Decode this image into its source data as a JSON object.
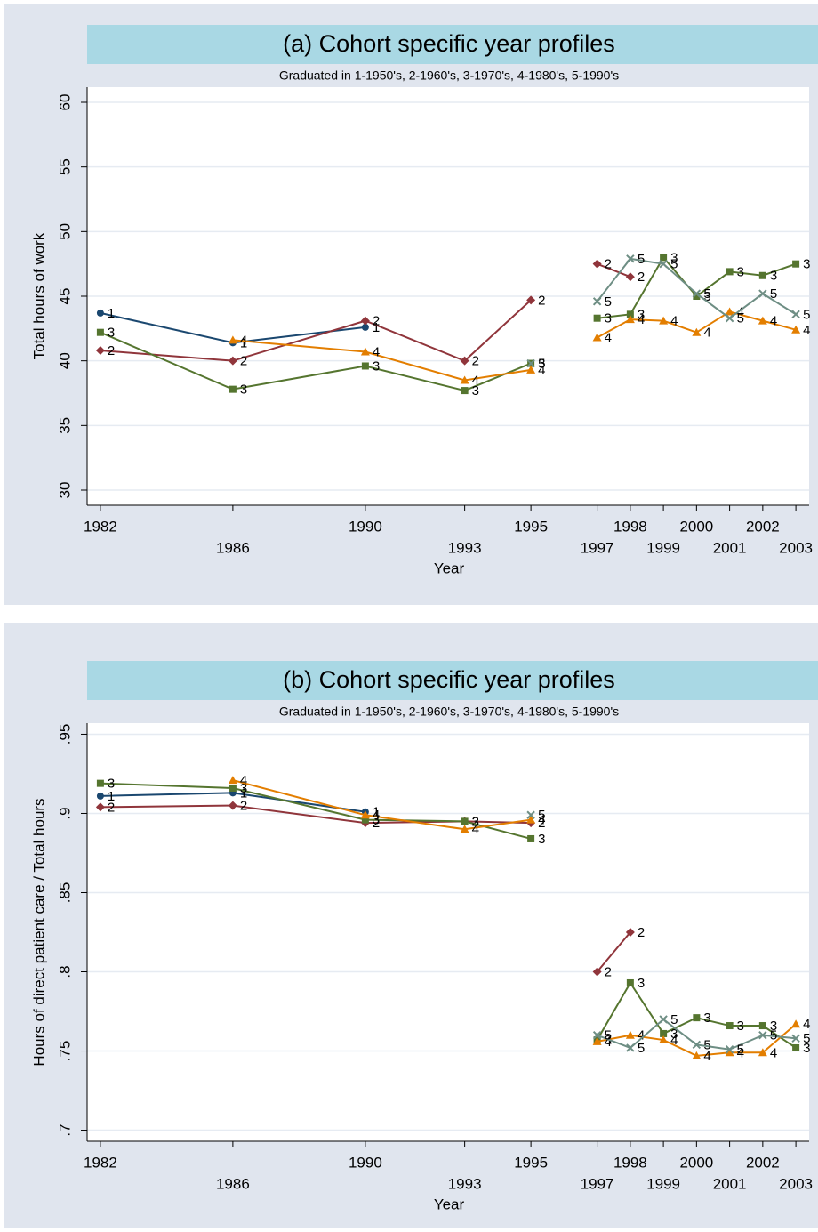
{
  "chart_data": [
    {
      "type": "line",
      "title": "(a) Cohort specific year profiles",
      "subtitle": "Graduated in 1-1950's, 2-1960's, 3-1970's, 4-1980's, 5-1990's",
      "x_label": "Year",
      "y_label": "Total hours of work",
      "xlim": [
        1981.6,
        2003.4
      ],
      "xticks": [
        1982,
        1986,
        1990,
        1993,
        1995,
        1997,
        1998,
        1999,
        2000,
        2001,
        2002,
        2003
      ],
      "ylim": [
        28.83,
        61.17
      ],
      "yticks": [
        30,
        35,
        40,
        45,
        50,
        55,
        60
      ],
      "grid": true,
      "series": [
        {
          "name": "1",
          "color": "#1a476f",
          "marker": "circle",
          "x": [
            1982,
            1986,
            1990
          ],
          "values": [
            43.7,
            41.4,
            42.6
          ]
        },
        {
          "name": "2",
          "color": "#90353b",
          "marker": "diamond",
          "x": [
            1982,
            1986,
            1990,
            1993,
            1995,
            null,
            1997,
            1998
          ],
          "values": [
            40.8,
            40.0,
            43.1,
            40.0,
            44.7,
            null,
            47.5,
            46.5
          ]
        },
        {
          "name": "3",
          "color": "#55752f",
          "marker": "square",
          "x": [
            1982,
            1986,
            1990,
            1993,
            1995,
            null,
            1997,
            1998,
            1999,
            2000,
            2001,
            2002,
            2003
          ],
          "values": [
            42.2,
            37.8,
            39.6,
            37.7,
            39.8,
            null,
            43.3,
            43.6,
            48.0,
            45.0,
            46.9,
            46.6,
            47.5
          ]
        },
        {
          "name": "4",
          "color": "#e37e00",
          "marker": "triangle",
          "x": [
            1986,
            1990,
            1993,
            1995,
            null,
            1997,
            1998,
            1999,
            2000,
            2001,
            2002,
            2003
          ],
          "values": [
            41.6,
            40.7,
            38.5,
            39.3,
            null,
            41.8,
            43.2,
            43.1,
            42.2,
            43.8,
            43.1,
            42.4
          ]
        },
        {
          "name": "5",
          "color": "#6e8e84",
          "marker": "x",
          "x": [
            1995,
            null,
            1997,
            1998,
            1999,
            2000,
            2001,
            2002,
            2003
          ],
          "values": [
            39.8,
            null,
            44.6,
            47.9,
            47.5,
            45.2,
            43.3,
            45.2,
            43.6
          ]
        }
      ]
    },
    {
      "type": "line",
      "title": "(b) Cohort specific year profiles",
      "subtitle": "Graduated in 1-1950's, 2-1960's, 3-1970's, 4-1980's, 5-1990's",
      "x_label": "Year",
      "y_label": "Hours of direct patient care / Total hours",
      "xlim": [
        1981.6,
        2003.4
      ],
      "xticks": [
        1982,
        1986,
        1990,
        1993,
        1995,
        1997,
        1998,
        1999,
        2000,
        2001,
        2002,
        2003
      ],
      "ylim": [
        0.693,
        0.957
      ],
      "yticks": [
        {
          "value": 0.7,
          "label": ".7"
        },
        {
          "value": 0.75,
          "label": ".75"
        },
        {
          "value": 0.8,
          "label": ".8"
        },
        {
          "value": 0.85,
          "label": ".85"
        },
        {
          "value": 0.9,
          "label": ".9"
        },
        {
          "value": 0.95,
          "label": ".95"
        }
      ],
      "grid": true,
      "series": [
        {
          "name": "1",
          "color": "#1a476f",
          "marker": "circle",
          "x": [
            1982,
            1986,
            1990
          ],
          "values": [
            0.911,
            0.913,
            0.901
          ]
        },
        {
          "name": "2",
          "color": "#90353b",
          "marker": "diamond",
          "x": [
            1982,
            1986,
            1990,
            1993,
            1995,
            null,
            1997,
            1998
          ],
          "values": [
            0.904,
            0.905,
            0.894,
            0.895,
            0.894,
            null,
            0.8,
            0.825
          ]
        },
        {
          "name": "3",
          "color": "#55752f",
          "marker": "square",
          "x": [
            1982,
            1986,
            1990,
            1993,
            1995,
            null,
            1997,
            1998,
            1999,
            2000,
            2001,
            2002,
            2003
          ],
          "values": [
            0.919,
            0.916,
            0.896,
            0.895,
            0.884,
            null,
            0.757,
            0.793,
            0.761,
            0.771,
            0.766,
            0.766,
            0.752
          ]
        },
        {
          "name": "4",
          "color": "#e37e00",
          "marker": "triangle",
          "x": [
            1986,
            1990,
            1993,
            1995,
            null,
            1997,
            1998,
            1999,
            2000,
            2001,
            2002,
            2003
          ],
          "values": [
            0.921,
            0.899,
            0.89,
            0.896,
            null,
            0.756,
            0.76,
            0.757,
            0.747,
            0.749,
            0.749,
            0.767
          ]
        },
        {
          "name": "5",
          "color": "#6e8e84",
          "marker": "x",
          "x": [
            1995,
            null,
            1997,
            1998,
            1999,
            2000,
            2001,
            2002,
            2003
          ],
          "values": [
            0.899,
            null,
            0.76,
            0.752,
            0.77,
            0.754,
            0.751,
            0.76,
            0.758
          ]
        }
      ]
    }
  ]
}
